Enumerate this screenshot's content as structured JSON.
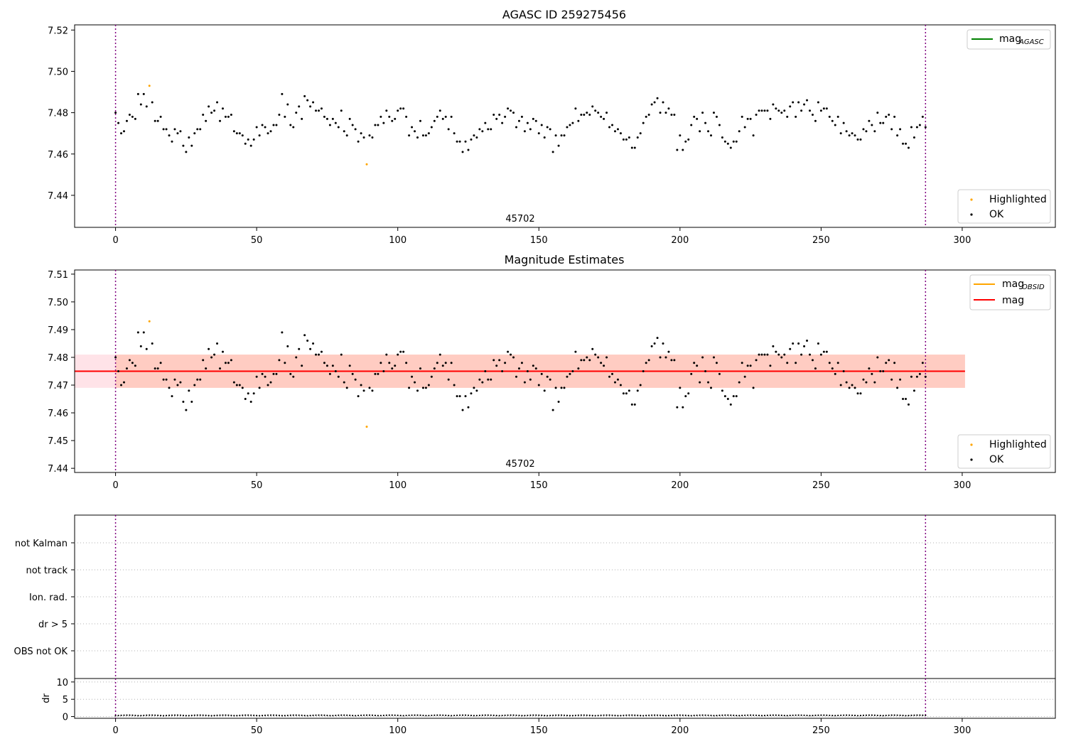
{
  "chart_data": [
    {
      "type": "scatter",
      "title": "AGASC ID 259275456",
      "xlim": [
        -14.5,
        333
      ],
      "ylim": [
        7.4245,
        7.5225
      ],
      "xticks": [
        "0",
        "50",
        "100",
        "150",
        "200",
        "250",
        "300"
      ],
      "yticks": [
        "7.44",
        "7.46",
        "7.48",
        "7.50",
        "7.52"
      ],
      "obsid_label": "45702",
      "obsid_label_x": 143.5,
      "obs_bounds": [
        0,
        287
      ],
      "legend_lines": [
        {
          "label": "mag",
          "sub": "AGASC",
          "color": "#008000"
        }
      ],
      "legend_markers": [
        {
          "label": "Highlighted",
          "color": "#ffa500"
        },
        {
          "label": "OK",
          "color": "#000000"
        }
      ],
      "points_note": "x = 0..287 (index); y magnitudes below",
      "y": [
        7.48,
        7.475,
        7.47,
        7.471,
        7.476,
        7.479,
        7.478,
        7.477,
        7.489,
        7.484,
        7.489,
        7.483,
        7.493,
        7.485,
        7.476,
        7.476,
        7.478,
        7.472,
        7.472,
        7.469,
        7.466,
        7.472,
        7.47,
        7.471,
        7.464,
        7.461,
        7.468,
        7.464,
        7.47,
        7.472,
        7.472,
        7.479,
        7.476,
        7.483,
        7.48,
        7.481,
        7.485,
        7.476,
        7.482,
        7.478,
        7.478,
        7.479,
        7.471,
        7.47,
        7.47,
        7.469,
        7.465,
        7.467,
        7.464,
        7.467,
        7.473,
        7.469,
        7.474,
        7.473,
        7.47,
        7.471,
        7.474,
        7.474,
        7.479,
        7.489,
        7.478,
        7.484,
        7.474,
        7.473,
        7.48,
        7.483,
        7.477,
        7.488,
        7.486,
        7.483,
        7.485,
        7.481,
        7.481,
        7.482,
        7.478,
        7.477,
        7.474,
        7.477,
        7.475,
        7.473,
        7.481,
        7.471,
        7.469,
        7.477,
        7.474,
        7.472,
        7.466,
        7.47,
        7.468,
        7.455,
        7.469,
        7.468,
        7.474,
        7.474,
        7.478,
        7.475,
        7.481,
        7.478,
        7.476,
        7.477,
        7.481,
        7.482,
        7.482,
        7.478,
        7.469,
        7.473,
        7.471,
        7.468,
        7.476,
        7.469,
        7.469,
        7.47,
        7.473,
        7.476,
        7.478,
        7.481,
        7.477,
        7.478,
        7.472,
        7.478,
        7.47,
        7.466,
        7.466,
        7.461,
        7.466,
        7.462,
        7.467,
        7.469,
        7.468,
        7.472,
        7.471,
        7.475,
        7.472,
        7.472,
        7.479,
        7.477,
        7.479,
        7.475,
        7.478,
        7.482,
        7.481,
        7.48,
        7.473,
        7.476,
        7.478,
        7.471,
        7.475,
        7.472,
        7.477,
        7.476,
        7.47,
        7.474,
        7.468,
        7.473,
        7.472,
        7.461,
        7.469,
        7.464,
        7.469,
        7.469,
        7.473,
        7.474,
        7.475,
        7.482,
        7.476,
        7.479,
        7.479,
        7.48,
        7.479,
        7.483,
        7.481,
        7.48,
        7.478,
        7.477,
        7.48,
        7.473,
        7.474,
        7.471,
        7.472,
        7.47,
        7.467,
        7.467,
        7.468,
        7.463,
        7.463,
        7.468,
        7.47,
        7.475,
        7.478,
        7.479,
        7.484,
        7.485,
        7.487,
        7.48,
        7.485,
        7.48,
        7.482,
        7.479,
        7.479,
        7.462,
        7.469,
        7.462,
        7.466,
        7.467,
        7.474,
        7.478,
        7.477,
        7.471,
        7.48,
        7.475,
        7.471,
        7.469,
        7.48,
        7.478,
        7.474,
        7.468,
        7.466,
        7.465,
        7.463,
        7.466,
        7.466,
        7.471,
        7.478,
        7.473,
        7.477,
        7.477,
        7.469,
        7.479,
        7.481,
        7.481,
        7.481,
        7.481,
        7.477,
        7.484,
        7.482,
        7.481,
        7.48,
        7.481,
        7.478,
        7.483,
        7.485,
        7.478,
        7.485,
        7.481,
        7.484,
        7.486,
        7.481,
        7.479,
        7.476,
        7.485,
        7.481,
        7.482,
        7.482,
        7.478,
        7.476,
        7.474,
        7.478,
        7.47,
        7.475,
        7.471,
        7.469,
        7.47,
        7.469,
        7.467,
        7.467,
        7.472,
        7.471,
        7.476,
        7.474,
        7.471,
        7.48,
        7.475,
        7.475,
        7.478,
        7.479,
        7.472,
        7.478,
        7.469,
        7.472,
        7.465,
        7.465,
        7.463,
        7.473,
        7.468,
        7.473,
        7.474,
        7.478,
        7.473
      ],
      "highlighted": [
        12,
        89
      ]
    },
    {
      "type": "scatter",
      "title": "Magnitude Estimates",
      "xlim": [
        -14.5,
        333
      ],
      "ylim": [
        7.4385,
        7.5115
      ],
      "xticks": [
        "0",
        "50",
        "100",
        "150",
        "200",
        "250",
        "300"
      ],
      "yticks": [
        "7.44",
        "7.45",
        "7.46",
        "7.47",
        "7.48",
        "7.49",
        "7.50",
        "7.51"
      ],
      "obsid_label": "45702",
      "obsid_label_x": 143.5,
      "obs_bounds": [
        0,
        287
      ],
      "mean_line": 7.475,
      "band_outer": [
        7.469,
        7.481
      ],
      "band_inner": [
        7.469,
        7.481
      ],
      "band_x": [
        -14.5,
        301
      ],
      "legend_lines": [
        {
          "label": "mag",
          "sub": "OBSID",
          "color": "#ffa500"
        },
        {
          "label": "mag",
          "sub": "",
          "color": "#ff0000"
        }
      ],
      "legend_markers": [
        {
          "label": "Highlighted",
          "color": "#ffa500"
        },
        {
          "label": "OK",
          "color": "#000000"
        }
      ]
    },
    {
      "type": "table",
      "categories": [
        "not Kalman",
        "not track",
        "Ion. rad.",
        "dr > 5",
        "OBS not OK"
      ]
    },
    {
      "type": "line",
      "ylabel": "dr",
      "ylim": [
        -0.5,
        11
      ],
      "yticks": [
        "0",
        "5",
        "10"
      ],
      "xticks": [
        "0",
        "50",
        "100",
        "150",
        "200",
        "250",
        "300"
      ],
      "dr_note": "small residuals, ~0.3 on average"
    }
  ]
}
